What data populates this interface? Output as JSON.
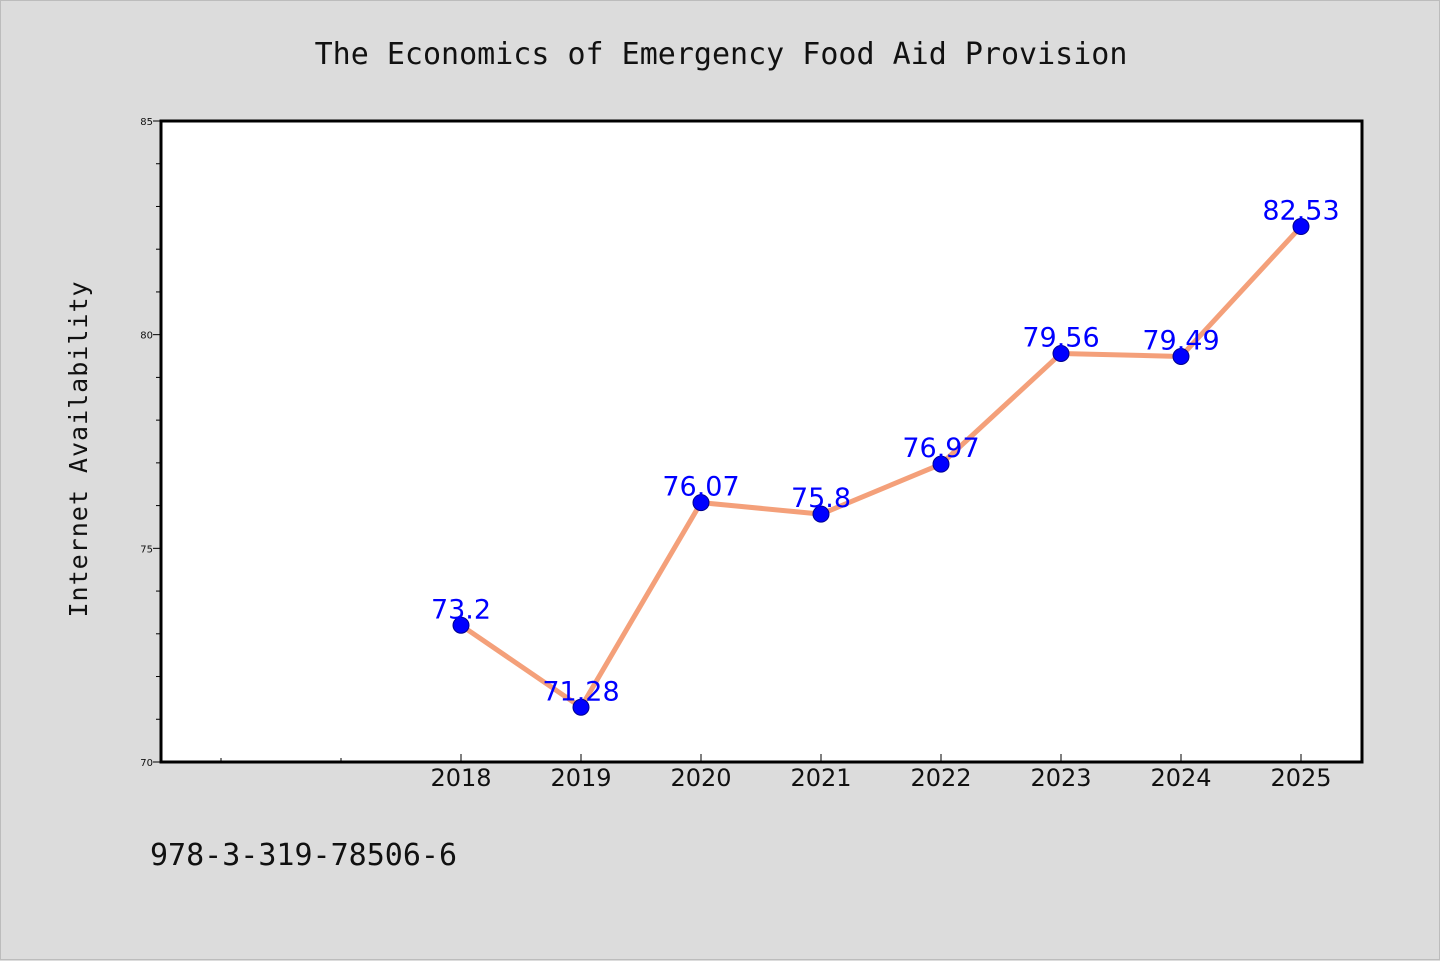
{
  "chart_data": {
    "type": "line",
    "title": "The Economics of Emergency Food Aid Provision",
    "xlabel": "",
    "ylabel": "Internet Availability",
    "categories": [
      "2018",
      "2019",
      "2020",
      "2021",
      "2022",
      "2023",
      "2024",
      "2025"
    ],
    "series": [
      {
        "values": [
          73.2,
          71.28,
          76.07,
          75.8,
          76.97,
          79.56,
          79.49,
          82.53
        ],
        "labels": [
          "73.2",
          "71.28",
          "76.07",
          "75.8",
          "76.97",
          "79.56",
          "79.49",
          "82.53"
        ]
      }
    ],
    "ylim": [
      70,
      85
    ],
    "yticks": [
      "70",
      "75",
      "80",
      "85"
    ],
    "grid": false,
    "legend": "none",
    "colors": {
      "line": "#f4a07a",
      "marker": "#0000ff",
      "data_label": "#0000ff",
      "plot_background": "#ffffff",
      "figure_background": "#dcdcdc"
    }
  },
  "footer_text": "978-3-319-78506-6"
}
